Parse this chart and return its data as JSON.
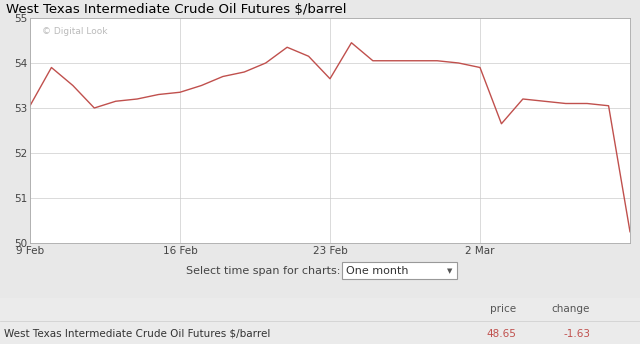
{
  "title": "West Texas Intermediate Crude Oil Futures $/barrel",
  "watermark": "© Digital Look",
  "line_color": "#c0504d",
  "background_color": "#e8e8e8",
  "plot_bg_color": "#ffffff",
  "grid_color": "#cccccc",
  "ylim": [
    50,
    55
  ],
  "yticks": [
    50,
    51,
    52,
    53,
    54,
    55
  ],
  "xtick_labels": [
    "9 Feb",
    "16 Feb",
    "23 Feb",
    "2 Mar"
  ],
  "xtick_positions": [
    0,
    7,
    14,
    21
  ],
  "price": "48.65",
  "change": "-1.63",
  "price_color": "#c0504d",
  "change_color": "#c0504d",
  "footer_label": "West Texas Intermediate Crude Oil Futures $/barrel",
  "select_label": "Select time span for charts:",
  "dropdown_label": "One month",
  "header_bg": "#e0e0e0",
  "footer_bg": "#f5f5f5",
  "table_bg": "#ebebeb",
  "y_values": [
    53.05,
    53.9,
    53.5,
    53.0,
    53.15,
    53.2,
    53.3,
    53.35,
    53.5,
    53.7,
    53.8,
    54.0,
    54.35,
    54.15,
    53.65,
    54.45,
    54.05,
    54.05,
    54.05,
    54.05,
    54.0,
    53.9,
    52.65,
    53.2,
    53.15,
    53.1,
    53.1,
    53.05,
    50.25
  ]
}
